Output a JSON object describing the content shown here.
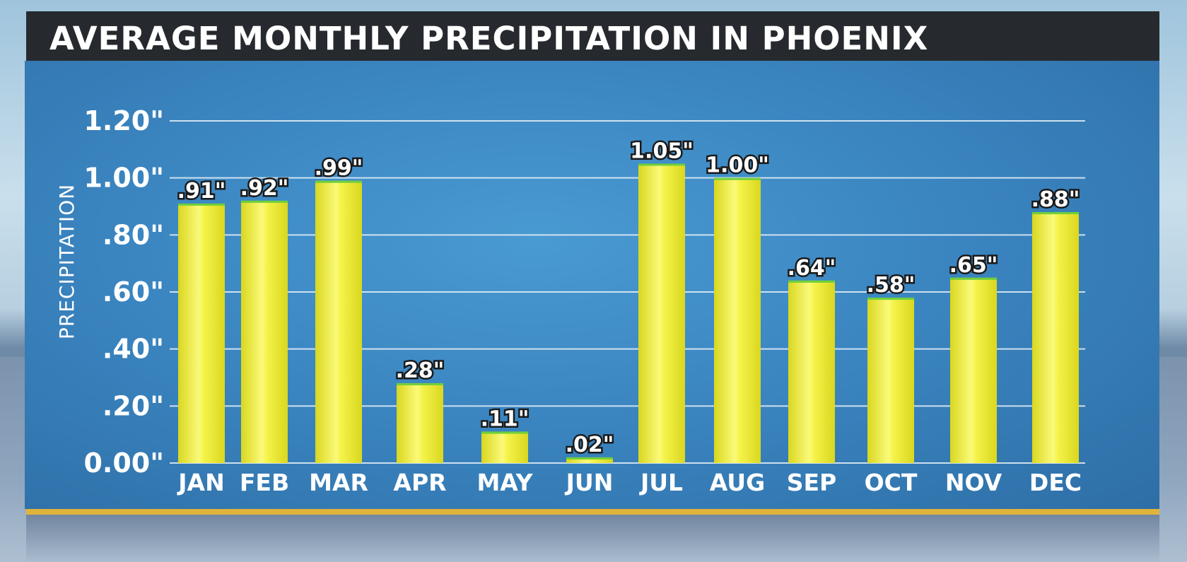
{
  "title": "AVERAGE MONTHLY PRECIPITATION IN PHOENIX",
  "colors": {
    "bar": "#e6e52a",
    "bar_highlight": "#fbfa7a",
    "grid": "#e8f1f8",
    "accent_rule": "#e0b43a",
    "title_bar": "#262a2e"
  },
  "chart_data": {
    "type": "bar",
    "title": "AVERAGE MONTHLY PRECIPITATION IN PHOENIX",
    "ylabel": "PRECIPITATION",
    "xlabel": "",
    "ylim": [
      0,
      1.2
    ],
    "yticks": [
      0,
      0.2,
      0.4,
      0.6,
      0.8,
      1.0,
      1.2
    ],
    "ytick_labels": [
      "0.00\"",
      ".20\"",
      ".40\"",
      ".60\"",
      ".80\"",
      "1.00\"",
      "1.20\""
    ],
    "grid": true,
    "categories": [
      "JAN",
      "FEB",
      "MAR",
      "APR",
      "MAY",
      "JUN",
      "JUL",
      "AUG",
      "SEP",
      "OCT",
      "NOV",
      "DEC"
    ],
    "values": [
      0.91,
      0.92,
      0.99,
      0.28,
      0.11,
      0.02,
      1.05,
      1.0,
      0.64,
      0.58,
      0.65,
      0.88
    ],
    "value_labels": [
      ".91\"",
      ".92\"",
      ".99\"",
      ".28\"",
      ".11\"",
      ".02\"",
      "1.05\"",
      "1.00\"",
      ".64\"",
      ".58\"",
      ".65\"",
      ".88\""
    ]
  }
}
